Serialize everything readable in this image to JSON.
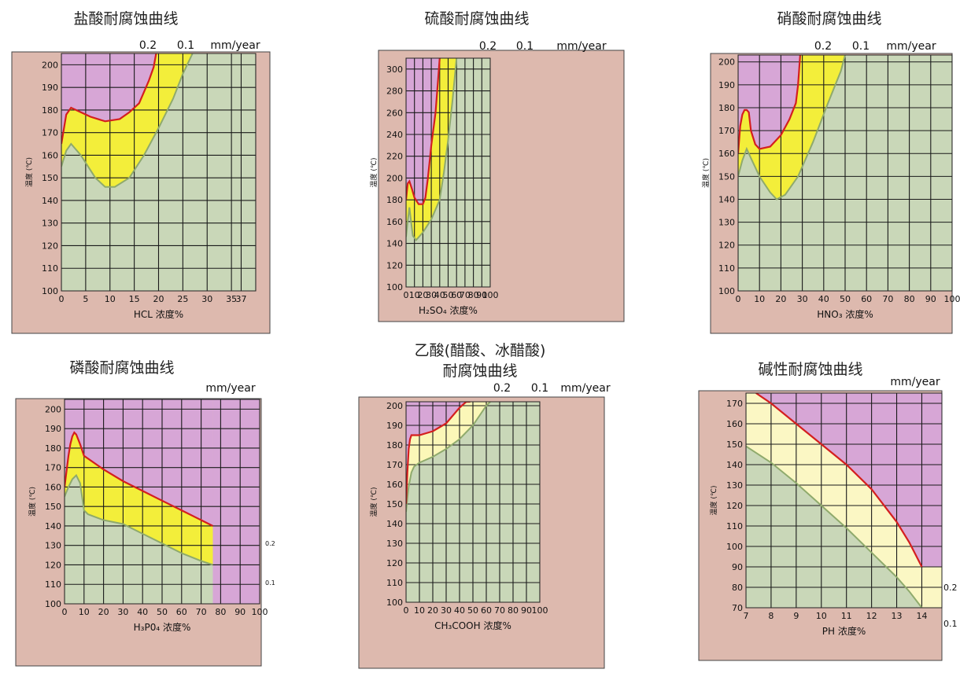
{
  "chart_data": [
    {
      "type": "area",
      "title": "盐酸耐腐蚀曲线",
      "unit_label": "mm/year",
      "line_labels": [
        "0.2",
        "0.1"
      ],
      "ylabel": "温度 (℃)",
      "xlabel": "HCL 浓度%",
      "xticks": [
        0,
        5,
        10,
        15,
        20,
        25,
        30,
        35,
        37
      ],
      "yticks": [
        100,
        110,
        120,
        130,
        140,
        150,
        160,
        170,
        180,
        190,
        200
      ],
      "xlim": [
        0,
        40
      ],
      "ylim": [
        100,
        205
      ],
      "grid": true,
      "colors": {
        "high": "#d7a6d6",
        "mid": "#f3ee3a",
        "low": "#c9d7b8",
        "line_02": "#d41f1f",
        "line_01": "#8faa6c"
      },
      "series": [
        {
          "name": "0.2",
          "x": [
            0,
            1,
            2,
            4,
            6,
            9,
            12,
            14,
            16,
            17,
            18,
            19,
            19.5
          ],
          "y": [
            165,
            178,
            181,
            179,
            177,
            175,
            176,
            179,
            183,
            188,
            193,
            199,
            205
          ]
        },
        {
          "name": "0.1",
          "x": [
            0,
            1,
            2,
            4,
            7,
            9,
            11,
            14,
            17,
            20,
            23,
            25,
            27
          ],
          "y": [
            155,
            162,
            165,
            160,
            150,
            146,
            146,
            150,
            160,
            172,
            185,
            196,
            205
          ]
        }
      ]
    },
    {
      "type": "area",
      "title": "硫酸耐腐蚀曲线",
      "unit_label": "mm/year",
      "line_labels": [
        "0.2",
        "0.1"
      ],
      "ylabel": "温度 (℃)",
      "xlabel": "H₂SO₄ 浓度%",
      "xticks": [
        0,
        10,
        20,
        30,
        40,
        50,
        60,
        70,
        80,
        90,
        100
      ],
      "yticks": [
        100,
        120,
        140,
        160,
        180,
        200,
        220,
        240,
        260,
        280,
        300
      ],
      "xlim": [
        0,
        100
      ],
      "ylim": [
        100,
        310
      ],
      "grid": true,
      "colors": {
        "high": "#d7a6d6",
        "mid": "#f3ee3a",
        "low": "#c9d7b8",
        "line_02": "#d41f1f",
        "line_01": "#8faa6c"
      },
      "series": [
        {
          "name": "0.2",
          "x": [
            0,
            2,
            4,
            7,
            10,
            15,
            20,
            23,
            26,
            30,
            35,
            38,
            40
          ],
          "y": [
            180,
            195,
            197,
            190,
            182,
            176,
            176,
            182,
            200,
            230,
            260,
            290,
            310
          ]
        },
        {
          "name": "0.1",
          "x": [
            0,
            2,
            4,
            6,
            8,
            12,
            20,
            30,
            40,
            45,
            50,
            55,
            60
          ],
          "y": [
            146,
            160,
            173,
            160,
            147,
            143,
            150,
            162,
            180,
            205,
            235,
            270,
            310
          ]
        }
      ]
    },
    {
      "type": "area",
      "title": "硝酸耐腐蚀曲线",
      "unit_label": "mm/year",
      "line_labels": [
        "0.2",
        "0.1"
      ],
      "ylabel": "温度 (℃)",
      "xlabel": "HNO₃ 浓度%",
      "xticks": [
        0,
        10,
        20,
        30,
        40,
        50,
        60,
        70,
        80,
        90,
        100
      ],
      "yticks": [
        100,
        110,
        120,
        130,
        140,
        150,
        160,
        170,
        180,
        190,
        200
      ],
      "xlim": [
        0,
        100
      ],
      "ylim": [
        100,
        203
      ],
      "grid": true,
      "colors": {
        "high": "#d7a6d6",
        "mid": "#f3ee3a",
        "low": "#c9d7b8",
        "line_02": "#d41f1f",
        "line_01": "#8faa6c"
      },
      "series": [
        {
          "name": "0.2",
          "x": [
            0,
            1,
            2,
            3,
            4,
            5,
            6,
            8,
            10,
            15,
            20,
            24,
            27,
            28,
            29
          ],
          "y": [
            160,
            172,
            177,
            179,
            179,
            178,
            170,
            164,
            162,
            163,
            168,
            175,
            182,
            190,
            203
          ]
        },
        {
          "name": "0.1",
          "x": [
            0,
            2,
            4,
            6,
            10,
            15,
            18,
            22,
            28,
            35,
            42,
            48,
            50
          ],
          "y": [
            150,
            157,
            162,
            158,
            150,
            143,
            140,
            142,
            150,
            165,
            182,
            196,
            203
          ]
        }
      ]
    },
    {
      "type": "area",
      "title": "磷酸耐腐蚀曲线",
      "unit_label": "mm/year",
      "line_labels": [
        "0.2",
        "0.1"
      ],
      "ylabel": "温度 (℃)",
      "xlabel": "H₃P0₄ 浓度%",
      "xticks": [
        0,
        10,
        20,
        30,
        40,
        50,
        60,
        70,
        80,
        90,
        100
      ],
      "yticks": [
        100,
        110,
        120,
        130,
        140,
        150,
        160,
        170,
        180,
        190,
        200
      ],
      "xlim": [
        0,
        100
      ],
      "ylim": [
        100,
        205
      ],
      "grid": true,
      "cutoff_x": 76,
      "colors": {
        "high": "#d7a6d6",
        "mid": "#f3ee3a",
        "low": "#c9d7b8",
        "line_02": "#d41f1f",
        "line_01": "#8faa6c"
      },
      "series": [
        {
          "name": "0.2",
          "x": [
            0,
            1,
            2,
            3,
            4,
            5,
            6,
            8,
            10,
            20,
            30,
            40,
            50,
            60,
            70,
            76
          ],
          "y": [
            160,
            168,
            176,
            182,
            186,
            188,
            187,
            182,
            176,
            169,
            163,
            158,
            153,
            148,
            143,
            140
          ]
        },
        {
          "name": "0.1",
          "x": [
            0,
            2,
            4,
            6,
            8,
            10,
            12,
            20,
            30,
            40,
            50,
            60,
            70,
            76
          ],
          "y": [
            155,
            160,
            164,
            166,
            162,
            148,
            146,
            143,
            141,
            136,
            131,
            126,
            122,
            120
          ]
        }
      ]
    },
    {
      "type": "area",
      "title": "乙酸(醋酸、冰醋酸)耐腐蚀曲线",
      "title_lines": [
        "乙酸(醋酸、冰醋酸)",
        "耐腐蚀曲线"
      ],
      "unit_label": "mm/year",
      "line_labels": [
        "0.2",
        "0.1"
      ],
      "ylabel": "温度 (℃)",
      "xlabel": "CH₃COOH 浓度%",
      "xticks": [
        0,
        10,
        20,
        30,
        40,
        50,
        60,
        70,
        80,
        90,
        100
      ],
      "yticks": [
        100,
        110,
        120,
        130,
        140,
        150,
        160,
        170,
        180,
        190,
        200
      ],
      "xlim": [
        0,
        100
      ],
      "ylim": [
        100,
        202
      ],
      "grid": true,
      "colors": {
        "high": "#d7a6d6",
        "mid": "#fbf7b8",
        "low": "#c9d7b8",
        "line_02": "#d41f1f",
        "line_01": "#8faa6c"
      },
      "series": [
        {
          "name": "0.2",
          "x": [
            0,
            1,
            2,
            3,
            4,
            6,
            10,
            20,
            25,
            30,
            35,
            40,
            45,
            48
          ],
          "y": [
            150,
            166,
            178,
            183,
            185,
            185,
            185,
            187,
            189,
            191,
            195,
            199,
            202,
            202
          ]
        },
        {
          "name": "0.1",
          "x": [
            0,
            1,
            2,
            4,
            6,
            10,
            20,
            30,
            40,
            50,
            55,
            60,
            63
          ],
          "y": [
            146,
            153,
            159,
            166,
            169,
            171,
            174,
            178,
            183,
            190,
            195,
            200,
            202
          ]
        }
      ]
    },
    {
      "type": "area",
      "title": "碱性耐腐蚀曲线",
      "unit_label": "mm/year",
      "side_labels": [
        "0.2",
        "0.1"
      ],
      "ylabel": "温度 (℃)",
      "xlabel": "PH 浓度%",
      "xticks": [
        7,
        8,
        9,
        10,
        11,
        12,
        13,
        14
      ],
      "yticks": [
        70,
        80,
        90,
        100,
        110,
        120,
        130,
        140,
        150,
        160,
        170
      ],
      "xlim": [
        7,
        14.8
      ],
      "ylim": [
        70,
        175
      ],
      "grid": true,
      "colors": {
        "high": "#d7a6d6",
        "mid": "#fbf7c4",
        "low": "#c9d7b8",
        "line_02": "#d41f1f",
        "line_01": "#8faa6c"
      },
      "series": [
        {
          "name": "0.2",
          "x": [
            7.4,
            8,
            9,
            10,
            11,
            12,
            13,
            13.5,
            14
          ],
          "y": [
            175,
            170,
            160,
            150,
            140,
            128,
            112,
            102,
            90
          ]
        },
        {
          "name": "0.1",
          "x": [
            7,
            8,
            9,
            10,
            11,
            12,
            13,
            13.5,
            14
          ],
          "y": [
            149,
            141,
            131,
            120,
            109,
            97,
            85,
            78,
            70
          ]
        }
      ]
    }
  ]
}
